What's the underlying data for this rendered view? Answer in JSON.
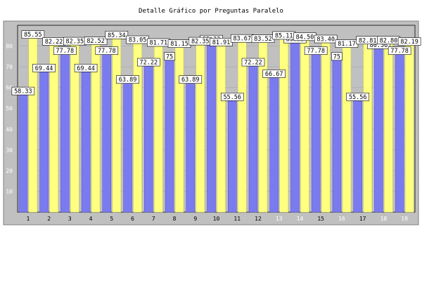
{
  "chart_data": {
    "type": "bar",
    "title": "Detalle Gráfico por Preguntas Paralelo",
    "xlabel": "",
    "ylabel": "",
    "ylim": [
      0,
      90
    ],
    "yticks": [
      10,
      20,
      30,
      40,
      50,
      60,
      70,
      80
    ],
    "grid": true,
    "legend": "none",
    "categories": [
      "1",
      "2",
      "3",
      "4",
      "5",
      "6",
      "7",
      "8",
      "9",
      "10",
      "11",
      "12",
      "13",
      "14",
      "15",
      "16",
      "17",
      "18",
      "19"
    ],
    "category_label_colors": [
      "#000000",
      "#000000",
      "#000000",
      "#000000",
      "#000000",
      "#000000",
      "#000000",
      "#000000",
      "#000000",
      "#000000",
      "#000000",
      "#000000",
      "#ffffff",
      "#ffffff",
      "#000000",
      "#ffffff",
      "#000000",
      "#ffffff",
      "#ffffff"
    ],
    "series": [
      {
        "color": "#7b7bf0",
        "values": [
          58.33,
          69.44,
          77.78,
          69.44,
          77.78,
          63.89,
          72.22,
          75,
          63.89,
          83.33,
          55.56,
          72.22,
          66.67,
          83.33,
          77.78,
          75,
          55.56,
          80.56,
          77.78
        ]
      },
      {
        "color": "#ffff80",
        "values": [
          85.55,
          82.22,
          82.35,
          82.52,
          85.34,
          83.05,
          81.71,
          81.15,
          82.35,
          81.91,
          83.67,
          83.52,
          85.11,
          84.5,
          83.4,
          81.17,
          82.81,
          82.8,
          82.19
        ]
      }
    ],
    "data_labels": [
      [
        "58.33",
        "69.44",
        "77.78",
        "69.44",
        "77.78",
        "63.89",
        "72.22",
        "75",
        "63.89",
        "83.33",
        "55.56",
        "72.22",
        "66.67",
        "83.33",
        "77.78",
        "75",
        "55.56",
        "80.56",
        "77.78"
      ],
      [
        "85.55",
        "82.22",
        "82.35",
        "82.52",
        "85.34",
        "83.05",
        "81.71",
        "81.15",
        "82.35",
        "81.91",
        "83.67",
        "83.52",
        "85.11",
        "84.50",
        "83.40",
        "81.17",
        "82.81",
        "82.80",
        "82.19"
      ]
    ]
  },
  "colors": {
    "plot_background": "#c0c0c0",
    "frame_background": "#c0c0c0"
  }
}
